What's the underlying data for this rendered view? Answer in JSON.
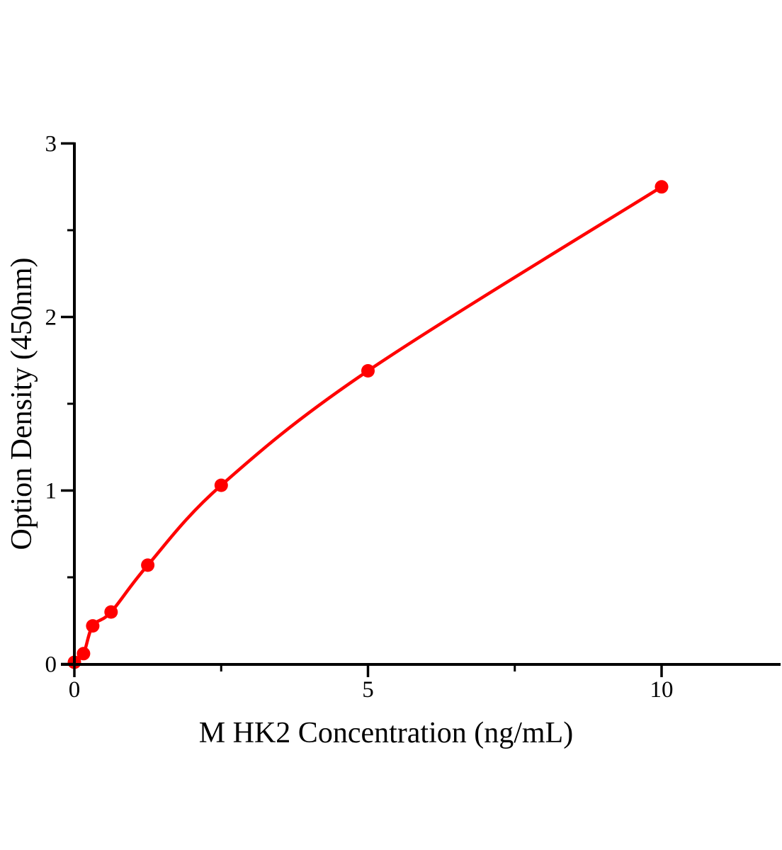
{
  "chart_data": {
    "type": "scatter",
    "title": "",
    "xlabel": "M HK2 Concentration (ng/mL)",
    "ylabel": "Option Density (450nm)",
    "points": [
      {
        "x": 0,
        "y": 0.01
      },
      {
        "x": 0.156,
        "y": 0.06
      },
      {
        "x": 0.313,
        "y": 0.22
      },
      {
        "x": 0.625,
        "y": 0.3
      },
      {
        "x": 1.25,
        "y": 0.57
      },
      {
        "x": 2.5,
        "y": 1.03
      },
      {
        "x": 5,
        "y": 1.69
      },
      {
        "x": 10,
        "y": 2.75
      }
    ],
    "curve": "smooth fit line through all points",
    "xlim": [
      0,
      12
    ],
    "ylim": [
      0,
      3
    ],
    "x_major_ticks": [
      0,
      5,
      10
    ],
    "x_minor_ticks": [
      2.5,
      7.5
    ],
    "y_major_ticks": [
      0,
      1,
      2,
      3
    ],
    "y_minor_ticks": [
      0.5,
      1.5,
      2.5
    ],
    "grid": false,
    "legend": false,
    "marker_color": "#ff0000",
    "line_color": "#ff0000",
    "axis_color": "#000000"
  }
}
